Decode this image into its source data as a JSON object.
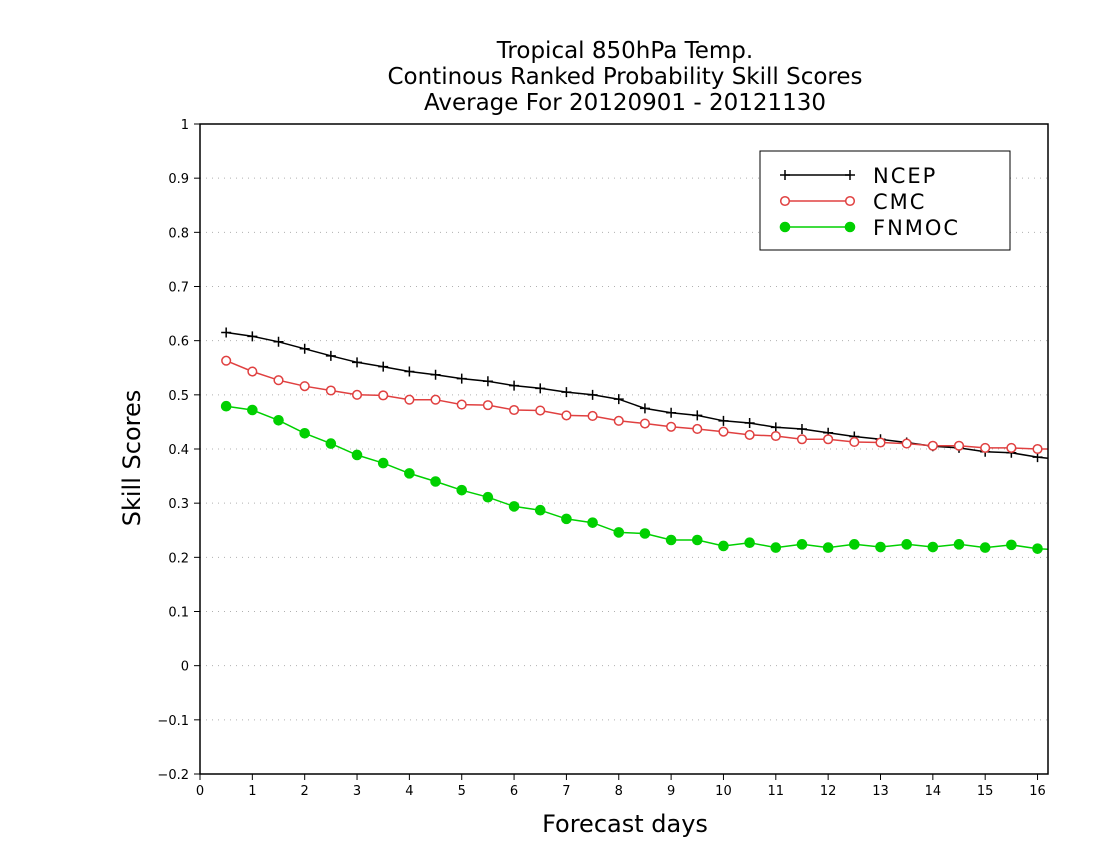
{
  "chart_data": {
    "type": "line",
    "title": [
      "Tropical 850hPa Temp.",
      "Continous Ranked Probability Skill Scores",
      "Average For 20120901 - 20121130"
    ],
    "xlabel": "Forecast days",
    "ylabel": "Skill Scores",
    "xlim": [
      0,
      16.2
    ],
    "ylim": [
      -0.2,
      1
    ],
    "xticks": [
      "0",
      "1",
      "2",
      "3",
      "4",
      "5",
      "6",
      "7",
      "8",
      "9",
      "10",
      "11",
      "12",
      "13",
      "14",
      "15",
      "16"
    ],
    "yticks": [
      "−0.2",
      "−0.1",
      "0",
      "0.1",
      "0.2",
      "0.3",
      "0.4",
      "0.5",
      "0.6",
      "0.7",
      "0.8",
      "0.9",
      "1"
    ],
    "grid": true,
    "legend_position": "top-right",
    "x": [
      0.5,
      1,
      1.5,
      2,
      2.5,
      3,
      3.5,
      4,
      4.5,
      5,
      5.5,
      6,
      6.5,
      7,
      7.5,
      8,
      8.5,
      9,
      9.5,
      10,
      10.5,
      11,
      11.5,
      12,
      12.5,
      13,
      13.5,
      14,
      14.5,
      15,
      15.5,
      16,
      16.2
    ],
    "series": [
      {
        "name": "NCEP",
        "color": "#000000",
        "marker": "plus",
        "values": [
          0.615,
          0.608,
          0.598,
          0.585,
          0.572,
          0.56,
          0.552,
          0.543,
          0.537,
          0.53,
          0.525,
          0.517,
          0.512,
          0.505,
          0.5,
          0.492,
          0.475,
          0.467,
          0.462,
          0.452,
          0.448,
          0.44,
          0.437,
          0.43,
          0.423,
          0.418,
          0.412,
          0.405,
          0.402,
          0.395,
          0.393,
          0.385,
          0.383
        ]
      },
      {
        "name": "CMC",
        "color": "#e04040",
        "marker": "open-circle",
        "values": [
          0.563,
          0.543,
          0.527,
          0.516,
          0.508,
          0.5,
          0.499,
          0.491,
          0.491,
          0.482,
          0.481,
          0.472,
          0.471,
          0.462,
          0.461,
          0.452,
          0.447,
          0.441,
          0.437,
          0.432,
          0.426,
          0.424,
          0.418,
          0.418,
          0.413,
          0.412,
          0.41,
          0.406,
          0.406,
          0.402,
          0.402,
          0.4,
          0.4
        ]
      },
      {
        "name": "FNMOC",
        "color": "#00d000",
        "marker": "filled-circle",
        "values": [
          0.479,
          0.472,
          0.453,
          0.429,
          0.41,
          0.389,
          0.374,
          0.355,
          0.34,
          0.324,
          0.311,
          0.294,
          0.287,
          0.271,
          0.264,
          0.246,
          0.244,
          0.232,
          0.232,
          0.221,
          0.227,
          0.218,
          0.224,
          0.218,
          0.224,
          0.219,
          0.224,
          0.219,
          0.224,
          0.218,
          0.223,
          0.216,
          0.215
        ]
      }
    ]
  }
}
